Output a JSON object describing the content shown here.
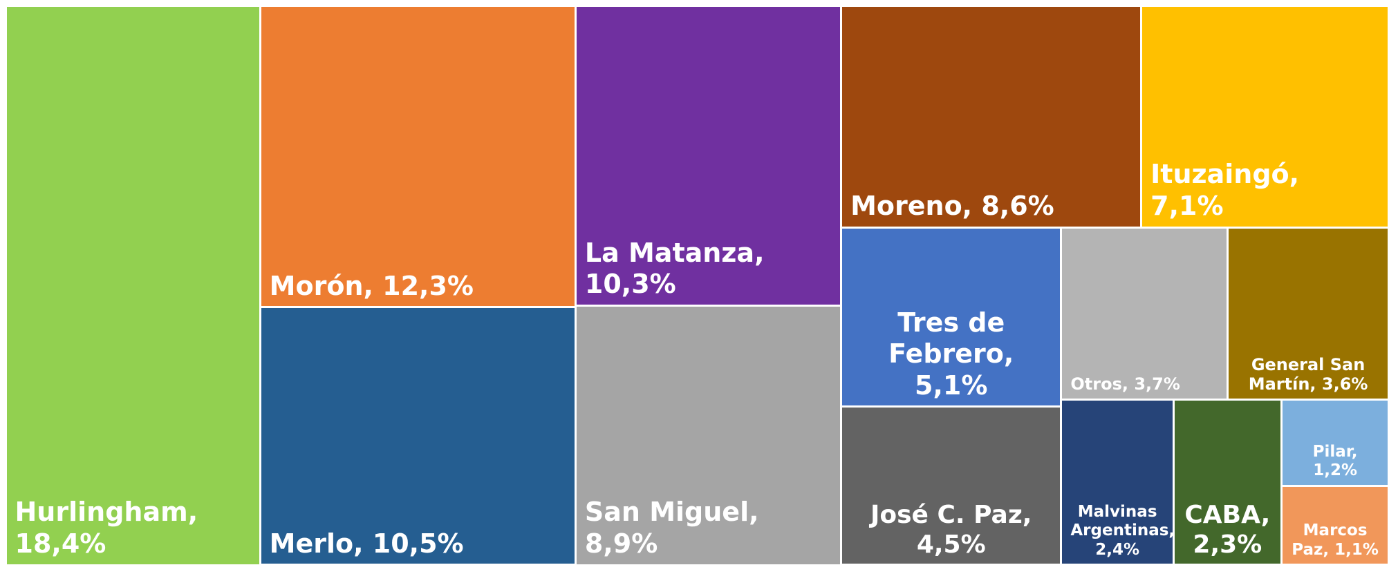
{
  "chart_data": {
    "type": "treemap",
    "values": [
      18.4,
      12.3,
      10.5,
      10.3,
      8.9,
      8.6,
      7.1,
      5.1,
      4.5,
      3.7,
      3.6,
      2.4,
      2.3,
      1.2,
      1.1
    ],
    "value_labels": [
      "Hurlingham, 18,4%",
      "Morón, 12,3%",
      "Merlo, 10,5%",
      "La Matanza, 10,3%",
      "San Miguel, 8,9%",
      "Moreno, 8,6%",
      "Ituzaingó, 7,1%",
      "Tres de Febrero, 5,1%",
      "José C. Paz, 4,5%",
      "Otros, 3,7%",
      "General San Martín, 3,6%",
      "Malvinas Argentinas, 2,4%",
      "CABA, 2,3%",
      "Pilar, 1,2%",
      "Marcos Paz, 1,1%"
    ],
    "colors": [
      "#92d050",
      "#ed7d31",
      "#255e91",
      "#7030a0",
      "#a5a5a5",
      "#9e480e",
      "#ffc000",
      "#4472c4",
      "#636363",
      "#b4b4b4",
      "#997300",
      "#264478",
      "#43682b",
      "#7cafdd",
      "#f1975a"
    ]
  }
}
